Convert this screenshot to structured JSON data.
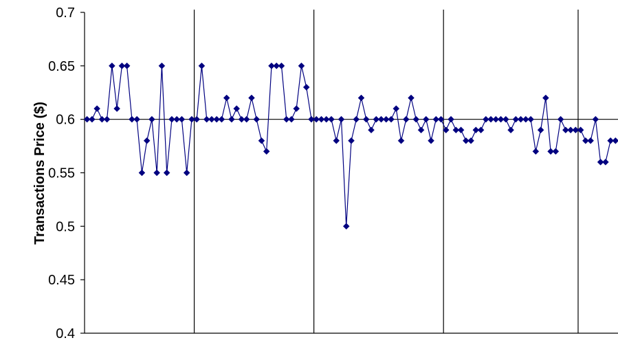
{
  "chart_data": {
    "type": "line",
    "title": "",
    "xlabel": "",
    "ylabel": "Transactions Price ($)",
    "ylim": [
      0.4,
      0.7
    ],
    "yticks": [
      0.4,
      0.45,
      0.5,
      0.55,
      0.6,
      0.65,
      0.7
    ],
    "ytick_labels": [
      "0.4",
      "0.45",
      "0.5",
      "0.55",
      "0.6",
      "0.65",
      "0.7"
    ],
    "reference_line": 0.6,
    "period_dividers_after_point": [
      21,
      45,
      71,
      98
    ],
    "grid": false,
    "legend": "none",
    "series": [
      {
        "color": "#000080",
        "marker": "diamond",
        "values": [
          0.6,
          0.6,
          0.61,
          0.6,
          0.6,
          0.65,
          0.61,
          0.65,
          0.65,
          0.6,
          0.6,
          0.55,
          0.58,
          0.6,
          0.55,
          0.65,
          0.55,
          0.6,
          0.6,
          0.6,
          0.55,
          0.6,
          0.6,
          0.65,
          0.6,
          0.6,
          0.6,
          0.6,
          0.62,
          0.6,
          0.61,
          0.6,
          0.6,
          0.62,
          0.6,
          0.58,
          0.57,
          0.65,
          0.65,
          0.65,
          0.6,
          0.6,
          0.61,
          0.65,
          0.63,
          0.6,
          0.6,
          0.6,
          0.6,
          0.6,
          0.58,
          0.6,
          0.5,
          0.58,
          0.6,
          0.62,
          0.6,
          0.59,
          0.6,
          0.6,
          0.6,
          0.6,
          0.61,
          0.58,
          0.6,
          0.62,
          0.6,
          0.59,
          0.6,
          0.58,
          0.6,
          0.6,
          0.59,
          0.6,
          0.59,
          0.59,
          0.58,
          0.58,
          0.59,
          0.59,
          0.6,
          0.6,
          0.6,
          0.6,
          0.6,
          0.59,
          0.6,
          0.6,
          0.6,
          0.6,
          0.57,
          0.59,
          0.62,
          0.57,
          0.57,
          0.6,
          0.59,
          0.59,
          0.59,
          0.59,
          0.58,
          0.58,
          0.6,
          0.56,
          0.56,
          0.58,
          0.58
        ]
      }
    ]
  }
}
